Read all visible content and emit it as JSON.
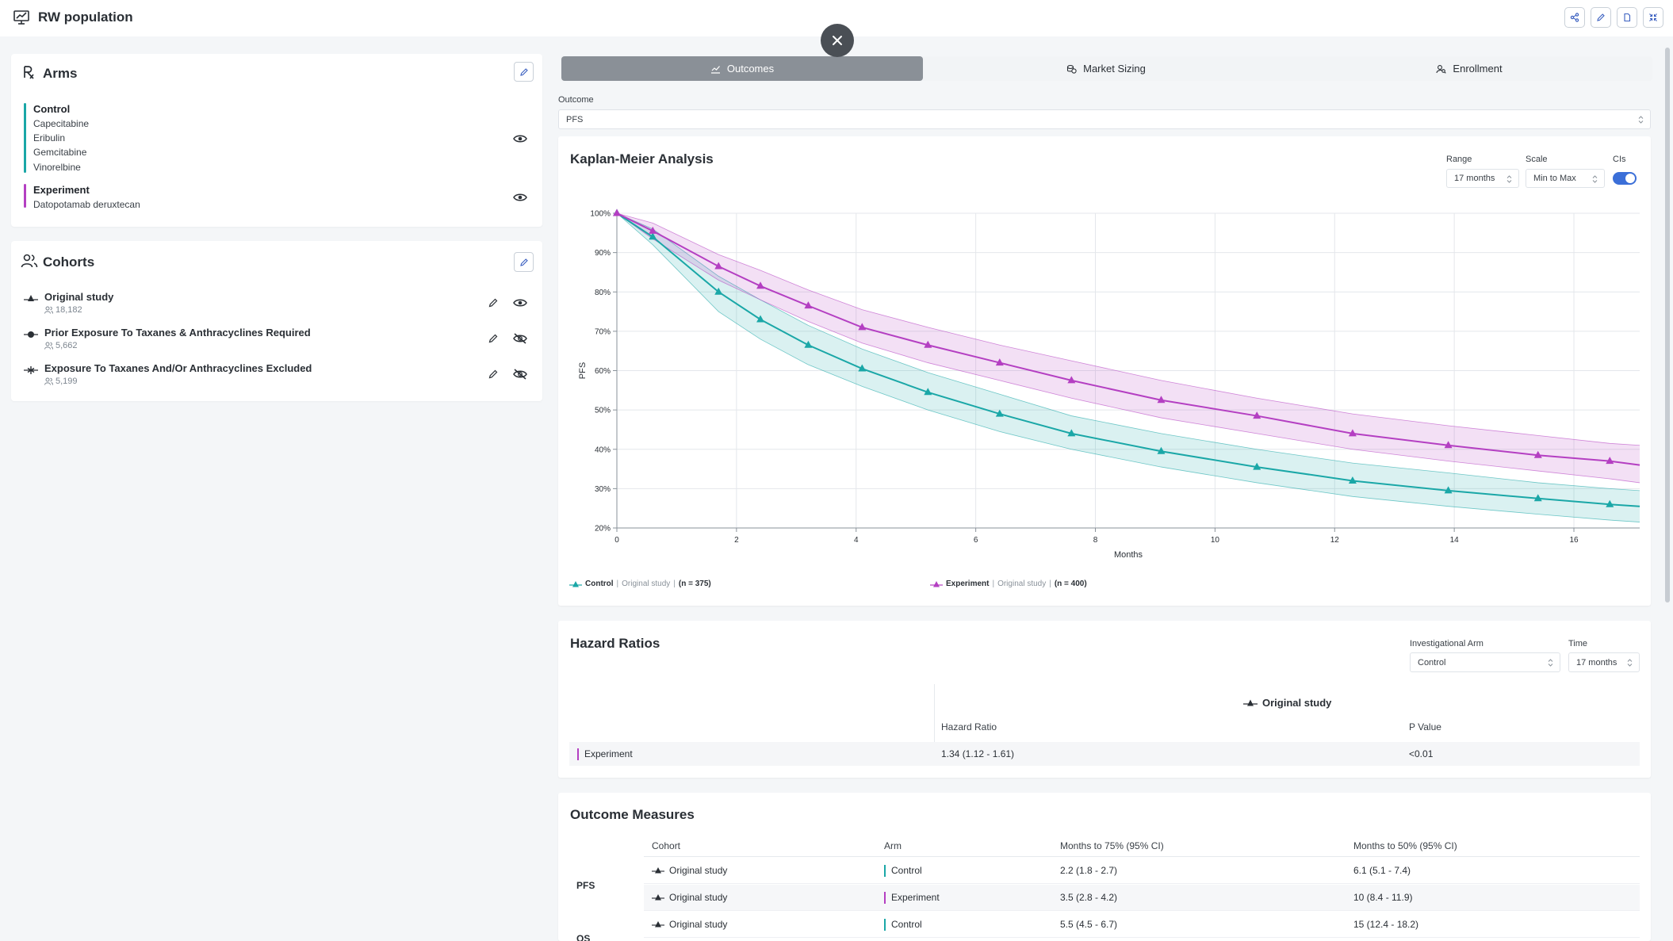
{
  "app": {
    "title": "RW population",
    "title_icon": "presentation-chart-icon",
    "toolbar_icons": [
      "share-icon",
      "pencil-icon",
      "document-icon",
      "collapse-icon"
    ]
  },
  "arms": {
    "title": "Arms",
    "items": [
      {
        "name": "Control",
        "color": "#1aa7a7",
        "drugs": [
          "Capecitabine",
          "Eribulin",
          "Gemcitabine",
          "Vinorelbine"
        ]
      },
      {
        "name": "Experiment",
        "color": "#b43fc2",
        "drugs": [
          "Datopotamab deruxtecan"
        ]
      }
    ]
  },
  "cohorts": {
    "title": "Cohorts",
    "items": [
      {
        "name": "Original study",
        "count": "18,182",
        "marker": "triangle",
        "visible": true
      },
      {
        "name": "Prior Exposure To Taxanes & Anthracyclines Required",
        "count": "5,662",
        "marker": "circle",
        "visible": false
      },
      {
        "name": "Exposure To Taxanes And/Or Anthracyclines Excluded",
        "count": "5,199",
        "marker": "asterisk",
        "visible": false
      }
    ]
  },
  "tabs": [
    {
      "label": "Outcomes",
      "icon": "chart-line-icon",
      "active": true
    },
    {
      "label": "Market Sizing",
      "icon": "coins-icon",
      "active": false
    },
    {
      "label": "Enrollment",
      "icon": "user-search-icon",
      "active": false
    }
  ],
  "outcome": {
    "label": "Outcome",
    "value": "PFS"
  },
  "km": {
    "title": "Kaplan-Meier Analysis",
    "range_label": "Range",
    "range_value": "17 months",
    "scale_label": "Scale",
    "scale_value": "Min to Max",
    "cis_label": "CIs",
    "cis_on": true,
    "legend": [
      {
        "arm": "Control",
        "cohort": "Original study",
        "n": "(n = 375)",
        "color": "#1aa7a7"
      },
      {
        "arm": "Experiment",
        "cohort": "Original study",
        "n": "(n = 400)",
        "color": "#b43fc2"
      }
    ]
  },
  "chart_data": {
    "type": "line",
    "title": "Kaplan-Meier Analysis",
    "xlabel": "Months",
    "ylabel": "PFS",
    "xlim": [
      0,
      17.1
    ],
    "ylim": [
      20,
      100
    ],
    "x_ticks": [
      0,
      2,
      4,
      6,
      8,
      10,
      12,
      14,
      16
    ],
    "y_ticks": [
      "20%",
      "30%",
      "40%",
      "50%",
      "60%",
      "70%",
      "80%",
      "90%",
      "100%"
    ],
    "grid": true,
    "series": [
      {
        "name": "Control",
        "color": "#1aa7a7",
        "marker": "triangle",
        "x": [
          0,
          0.6,
          1.7,
          2.4,
          3.2,
          4.1,
          5.2,
          6.4,
          7.6,
          9.1,
          10.7,
          12.3,
          13.9,
          15.4,
          16.6,
          17.1
        ],
        "y": [
          100,
          94,
          80,
          73,
          66.5,
          60.5,
          54.5,
          49,
          44,
          39.5,
          35.5,
          32,
          29.5,
          27.5,
          26,
          25.5
        ],
        "ci_low": [
          100,
          92,
          75,
          68,
          61.5,
          56,
          50,
          44.5,
          40,
          35.5,
          31.5,
          28,
          25.5,
          23.5,
          22,
          21.5
        ],
        "ci_high": [
          100,
          96,
          84,
          78,
          71.5,
          65.5,
          59.5,
          54,
          48.5,
          44,
          40,
          36.5,
          34,
          31.5,
          30,
          29.5
        ]
      },
      {
        "name": "Experiment",
        "color": "#b43fc2",
        "marker": "triangle",
        "x": [
          0,
          0.6,
          1.7,
          2.4,
          3.2,
          4.1,
          5.2,
          6.4,
          7.6,
          9.1,
          10.7,
          12.3,
          13.9,
          15.4,
          16.6,
          17.1
        ],
        "y": [
          100,
          95.5,
          86.5,
          81.5,
          76.5,
          71,
          66.5,
          62,
          57.5,
          52.5,
          48.5,
          44,
          41,
          38.5,
          37,
          36
        ],
        "ci_low": [
          100,
          93.5,
          83,
          78,
          72.5,
          67,
          62,
          57.5,
          53,
          48,
          44,
          40,
          37,
          34.5,
          32.5,
          31.5
        ],
        "ci_high": [
          100,
          97.5,
          89.5,
          85.5,
          80.5,
          75.5,
          71,
          66.5,
          62.5,
          57.5,
          53,
          49,
          46,
          43.5,
          41.5,
          41
        ]
      }
    ]
  },
  "hazard": {
    "title": "Hazard Ratios",
    "arm_label": "Investigational Arm",
    "arm_value": "Control",
    "time_label": "Time",
    "time_value": "17 months",
    "study_header": "Original study",
    "col_hr": "Hazard Ratio",
    "col_p": "P Value",
    "rows": [
      {
        "arm": "Experiment",
        "color": "#b43fc2",
        "hr": "1.34 (1.12  -  1.61)",
        "p": "<0.01"
      }
    ]
  },
  "outcome_measures": {
    "title": "Outcome Measures",
    "headers": [
      "Cohort",
      "Arm",
      "Months to 75% (95% CI)",
      "Months to 50% (95% CI)"
    ],
    "groups": [
      {
        "label": "PFS"
      },
      {
        "label": "OS"
      }
    ],
    "rows": [
      {
        "cohort": "Original study",
        "arm": "Control",
        "color": "#1aa7a7",
        "m75": "2.2 (1.8 - 2.7)",
        "m50": "6.1 (5.1 - 7.4)"
      },
      {
        "cohort": "Original study",
        "arm": "Experiment",
        "color": "#b43fc2",
        "m75": "3.5 (2.8 - 4.2)",
        "m50": "10 (8.4 - 11.9)"
      },
      {
        "cohort": "Original study",
        "arm": "Control",
        "color": "#1aa7a7",
        "m75": "5.5 (4.5 - 6.7)",
        "m50": "15 (12.4 - 18.2)"
      }
    ]
  }
}
